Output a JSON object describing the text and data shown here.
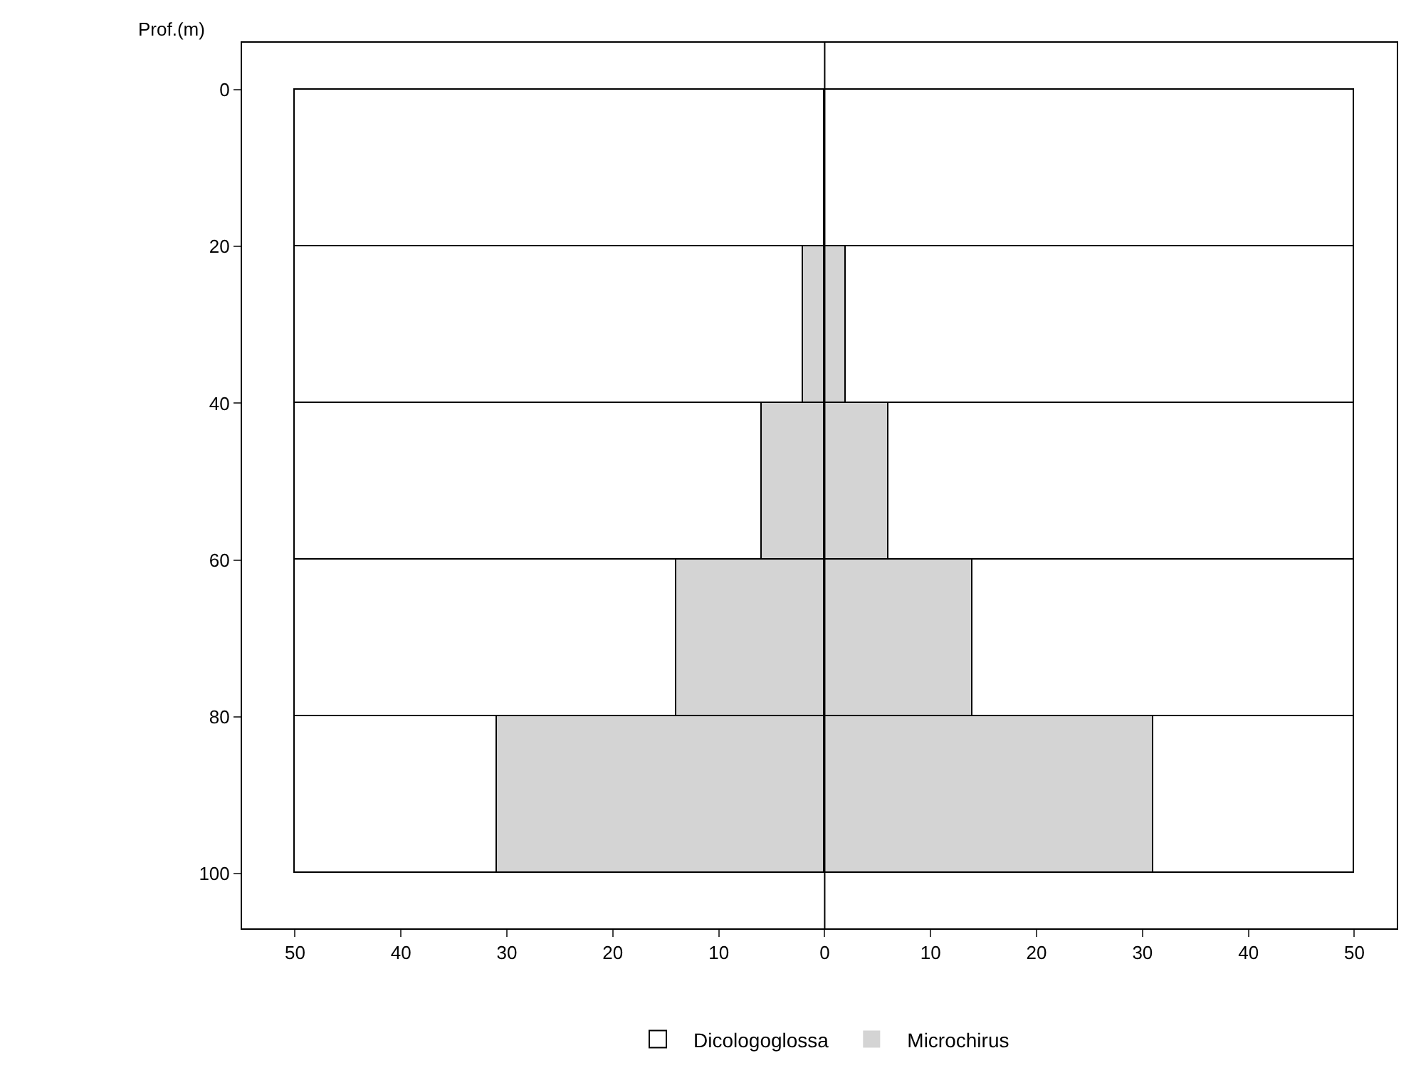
{
  "chart_data": {
    "type": "bar",
    "orientation": "horizontal",
    "stacked": true,
    "ylabel": "Prof.(m)",
    "x": [
      10,
      30,
      50,
      70,
      90
    ],
    "series": [
      {
        "name": "Microchirus",
        "color": "#d4d4d4",
        "values": [
          0,
          2,
          6,
          14,
          31
        ]
      },
      {
        "name": "Dicologoglossa",
        "color": "#ffffff",
        "values": [
          50,
          48,
          44,
          36,
          19
        ]
      },
      {
        "color": "#d4d4d4",
        "values": [
          0,
          -2,
          -6,
          -14,
          -31
        ]
      },
      {
        "color": "#ffffff",
        "values": [
          -50,
          -48,
          -44,
          -36,
          -19
        ]
      }
    ],
    "xlim": [
      -55,
      54
    ],
    "ylim": [
      107,
      -6
    ],
    "xticks": [
      {
        "value": -50,
        "label": "50"
      },
      {
        "value": -40,
        "label": "40"
      },
      {
        "value": -30,
        "label": "30"
      },
      {
        "value": -20,
        "label": "20"
      },
      {
        "value": -10,
        "label": "10"
      },
      0,
      10,
      20,
      30,
      40,
      50
    ],
    "yticks": [
      0,
      20,
      40,
      60,
      80,
      100
    ],
    "ref_lines": [
      {
        "axis": "x",
        "value": 0,
        "color": "#000000"
      }
    ],
    "legend": "bottom"
  }
}
